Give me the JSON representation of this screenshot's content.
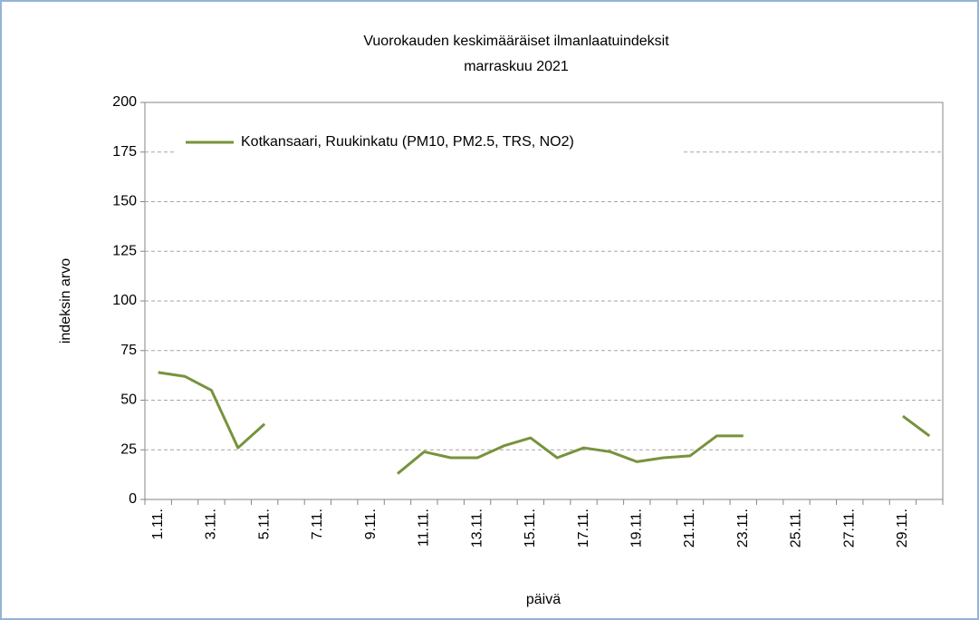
{
  "chart_data": {
    "type": "line",
    "title": "Vuorokauden keskimääräiset ilmanlaatuindeksit",
    "subtitle": "marraskuu 2021",
    "x_label": "päivä",
    "y_label": "indeksin arvo",
    "categories": [
      "1.11.",
      null,
      "3.11.",
      null,
      "5.11.",
      null,
      "7.11.",
      null,
      "9.11.",
      null,
      "11.11.",
      null,
      "13.11.",
      null,
      "15.11.",
      null,
      "17.11.",
      null,
      "19.11.",
      null,
      "21.11.",
      null,
      "23.11.",
      null,
      "25.11.",
      null,
      "27.11.",
      null,
      "29.11.",
      null
    ],
    "series": [
      {
        "name": "Kotkansaari, Ruukinkatu (PM10, PM2.5, TRS, NO2)",
        "color": "#77933c",
        "values": [
          64,
          62,
          55,
          26,
          38,
          null,
          null,
          null,
          null,
          13,
          24,
          21,
          21,
          27,
          31,
          21,
          26,
          24,
          19,
          21,
          22,
          32,
          32,
          null,
          null,
          null,
          null,
          null,
          42,
          32
        ]
      }
    ],
    "ylim": [
      0,
      200
    ],
    "yticks": [
      0,
      25,
      50,
      75,
      100,
      125,
      150,
      175,
      200
    ],
    "grid": true,
    "legend": "upper left"
  }
}
